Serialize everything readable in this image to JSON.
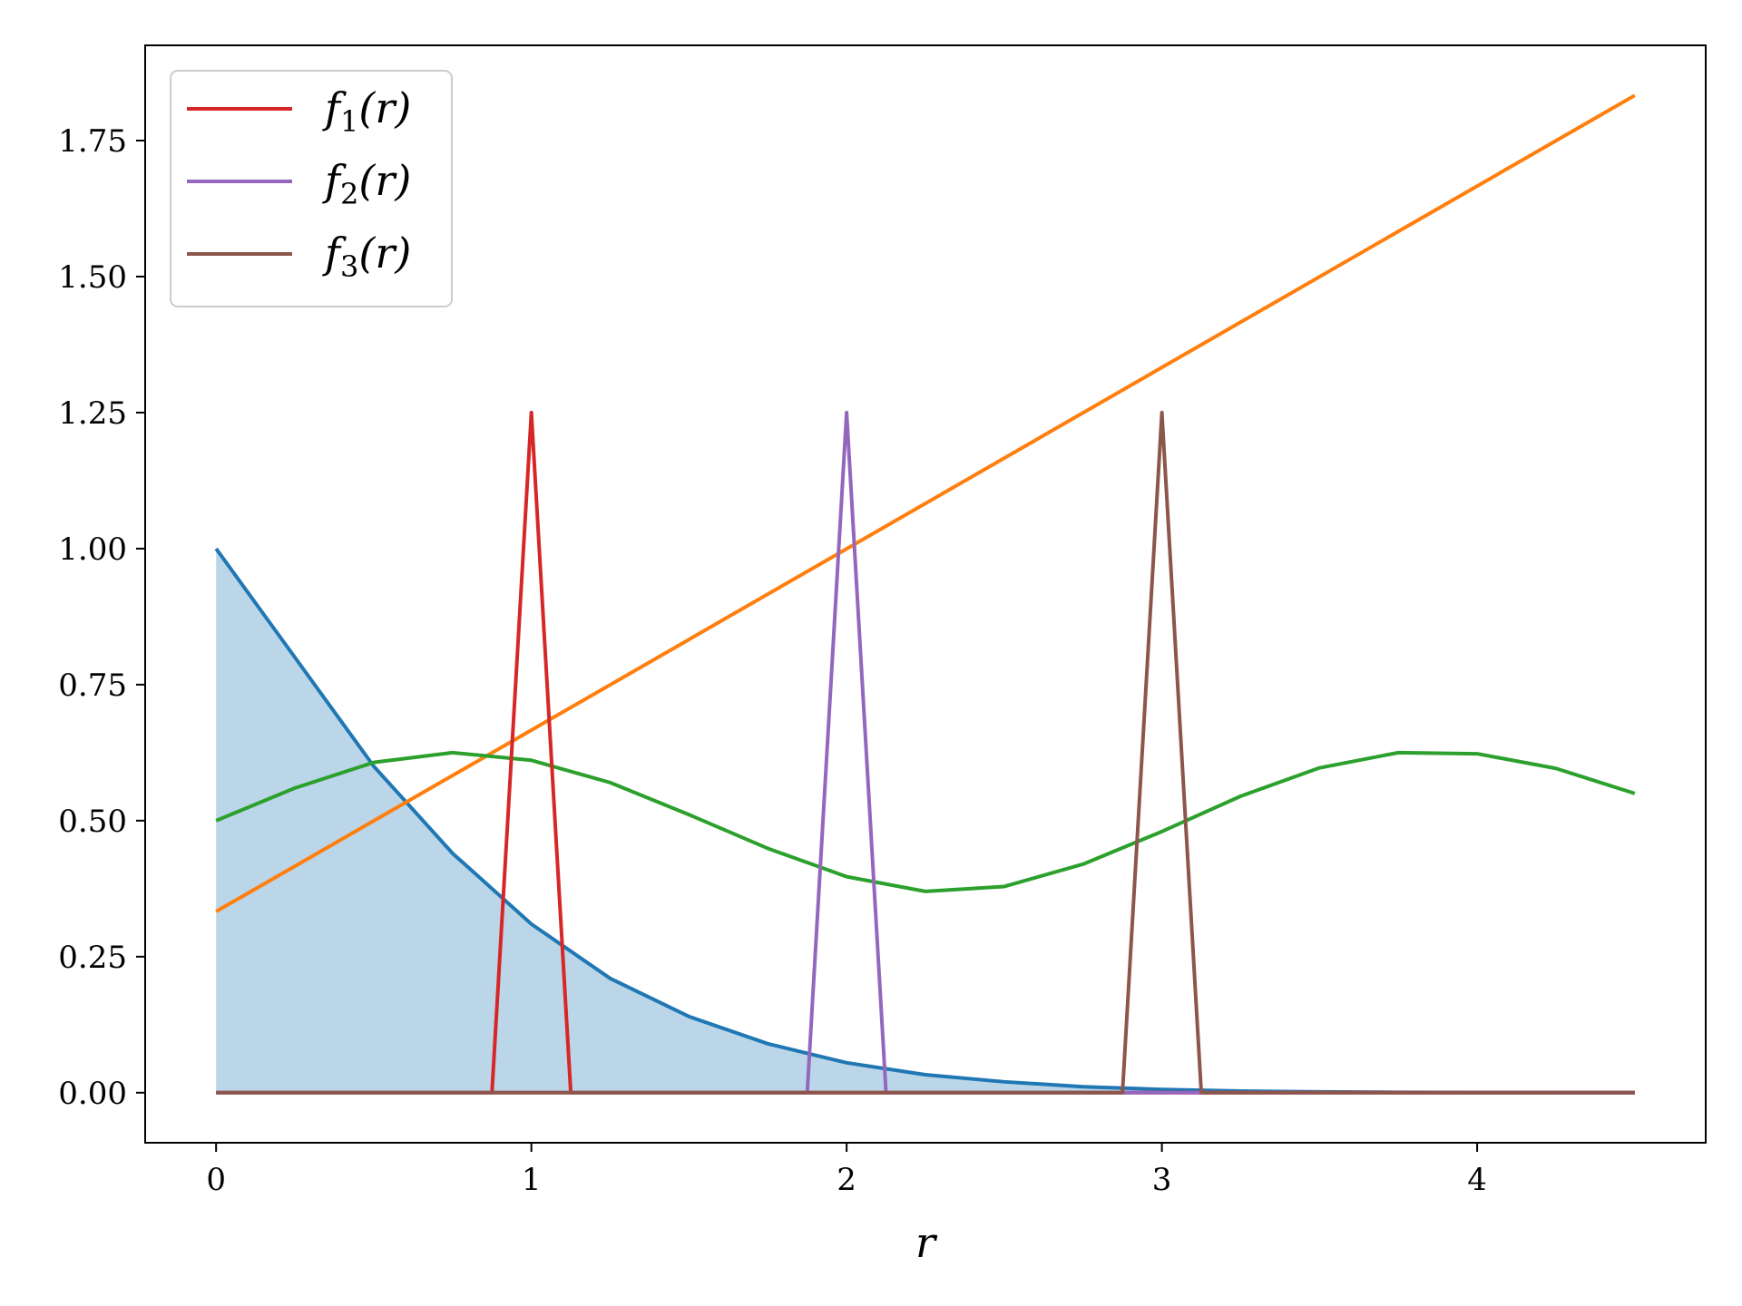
{
  "chart_data": {
    "type": "line",
    "title": "",
    "xlabel": "r",
    "ylabel": "",
    "xlim": [
      -0.225,
      4.725
    ],
    "ylim": [
      -0.092,
      1.925
    ],
    "xticks": [
      0,
      1,
      2,
      3,
      4
    ],
    "xtick_labels": [
      "0",
      "1",
      "2",
      "3",
      "4"
    ],
    "yticks": [
      0.0,
      0.25,
      0.5,
      0.75,
      1.0,
      1.25,
      1.5,
      1.75
    ],
    "ytick_labels": [
      "0.00",
      "0.25",
      "0.50",
      "0.75",
      "1.00",
      "1.25",
      "1.50",
      "1.75"
    ],
    "grid": false,
    "legend_position": "top-left",
    "series": [
      {
        "color": "#1f77b4",
        "fill": true,
        "x": [
          0,
          0.25,
          0.5,
          0.75,
          1.0,
          1.25,
          1.5,
          1.75,
          2.0,
          2.25,
          2.5,
          2.75,
          3.0,
          3.25,
          3.5,
          3.75,
          4.0,
          4.25,
          4.5
        ],
        "y": [
          1.0,
          0.8,
          0.6,
          0.44,
          0.31,
          0.21,
          0.14,
          0.09,
          0.055,
          0.033,
          0.02,
          0.011,
          0.006,
          0.003,
          0.0015,
          0.0007,
          0.0003,
          0.0001,
          0.0
        ]
      },
      {
        "color": "#ff7f0e",
        "x": [
          0,
          4.5
        ],
        "y": [
          0.333,
          1.833
        ]
      },
      {
        "color": "#2ca02c",
        "x": [
          0,
          0.25,
          0.5,
          0.75,
          1.0,
          1.25,
          1.5,
          1.75,
          2.0,
          2.25,
          2.5,
          2.75,
          3.0,
          3.25,
          3.5,
          3.75,
          4.0,
          4.25,
          4.5
        ],
        "y": [
          0.5,
          0.56,
          0.607,
          0.625,
          0.611,
          0.57,
          0.511,
          0.449,
          0.397,
          0.37,
          0.379,
          0.42,
          0.48,
          0.545,
          0.597,
          0.625,
          0.623,
          0.596,
          0.55
        ]
      },
      {
        "name": "f_1(r)",
        "color": "#d62728",
        "x": [
          0,
          0.875,
          1.0,
          1.125,
          4.5
        ],
        "y": [
          0,
          0,
          1.25,
          0,
          0
        ]
      },
      {
        "name": "f_2(r)",
        "color": "#9467bd",
        "x": [
          0,
          1.875,
          2.0,
          2.125,
          4.5
        ],
        "y": [
          0,
          0,
          1.25,
          0,
          0
        ]
      },
      {
        "name": "f_3(r)",
        "color": "#8c564b",
        "x": [
          0,
          2.875,
          3.0,
          3.125,
          4.5
        ],
        "y": [
          0,
          0,
          1.25,
          0,
          0
        ]
      }
    ]
  }
}
